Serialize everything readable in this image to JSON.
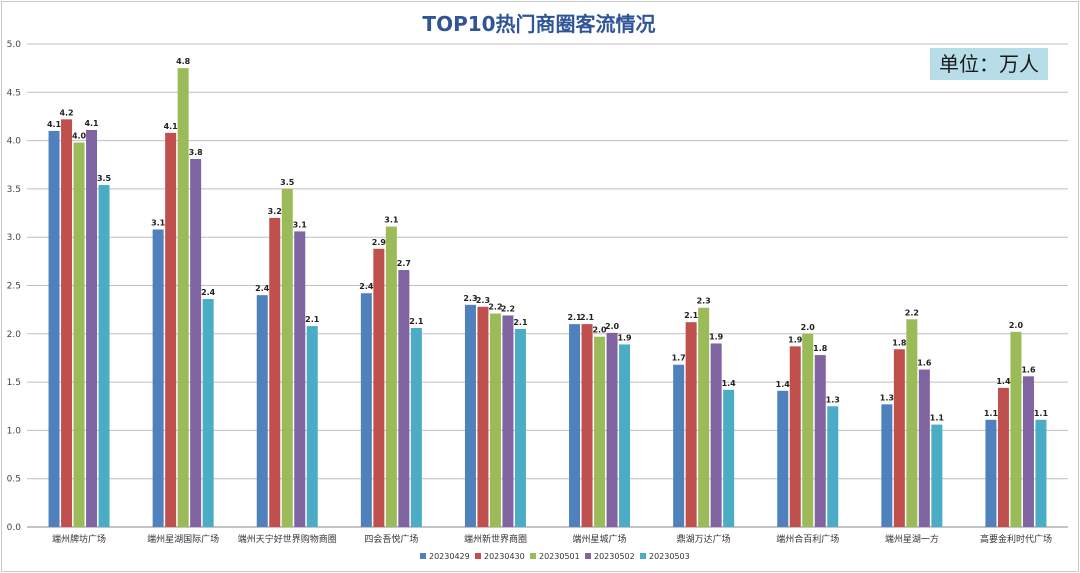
{
  "chart_data": {
    "type": "bar",
    "title": "TOP10热门商圈客流情况",
    "annotation": "单位：万人",
    "xlabel": "",
    "ylabel": "",
    "ylim": [
      0,
      5
    ],
    "yticks": [
      "0.0",
      "0.5",
      "1.0",
      "1.5",
      "2.0",
      "2.5",
      "3.0",
      "3.5",
      "4.0",
      "4.5",
      "5.0"
    ],
    "grid": true,
    "legend_position": "bottom",
    "categories": [
      "端州牌坊广场",
      "端州星湖国际广场",
      "端州天宁好世界购物商圈",
      "四会吾悦广场",
      "端州新世界商圈",
      "端州星城广场",
      "鼎湖万达广场",
      "端州合百利广场",
      "端州星湖一方",
      "高要金利时代广场"
    ],
    "series": [
      {
        "name": "20230429",
        "color": "#4f81bd",
        "values": [
          4.1,
          3.08,
          2.4,
          2.42,
          2.3,
          2.1,
          1.68,
          1.41,
          1.27,
          1.11
        ],
        "labels": [
          "4.1",
          "3.1",
          "2.4",
          "2.4",
          "2.3",
          "2.1",
          "1.7",
          "1.4",
          "1.3",
          "1.1"
        ]
      },
      {
        "name": "20230430",
        "color": "#c0504d",
        "values": [
          4.22,
          4.08,
          3.2,
          2.88,
          2.28,
          2.1,
          2.12,
          1.87,
          1.84,
          1.44
        ],
        "labels": [
          "4.2",
          "4.1",
          "3.2",
          "2.9",
          "2.3",
          "2.1",
          "2.1",
          "1.9",
          "1.8",
          "1.4"
        ]
      },
      {
        "name": "20230501",
        "color": "#9bbb59",
        "values": [
          3.98,
          4.75,
          3.5,
          3.11,
          2.21,
          1.97,
          2.27,
          2.0,
          2.15,
          2.02
        ],
        "labels": [
          "4.0",
          "4.8",
          "3.5",
          "3.1",
          "2.2",
          "2.0",
          "2.3",
          "2.0",
          "2.2",
          "2.0"
        ]
      },
      {
        "name": "20230502",
        "color": "#8064a2",
        "values": [
          4.11,
          3.81,
          3.06,
          2.66,
          2.19,
          2.01,
          1.9,
          1.78,
          1.63,
          1.56
        ],
        "labels": [
          "4.1",
          "3.8",
          "3.1",
          "2.7",
          "2.2",
          "2.0",
          "1.9",
          "1.8",
          "1.6",
          "1.6"
        ]
      },
      {
        "name": "20230503",
        "color": "#4bacc6",
        "values": [
          3.54,
          2.36,
          2.08,
          2.06,
          2.05,
          1.89,
          1.42,
          1.25,
          1.06,
          1.11
        ],
        "labels": [
          "3.5",
          "2.4",
          "2.1",
          "2.1",
          "2.1",
          "1.9",
          "1.4",
          "1.3",
          "1.1",
          "1.1"
        ]
      }
    ]
  }
}
